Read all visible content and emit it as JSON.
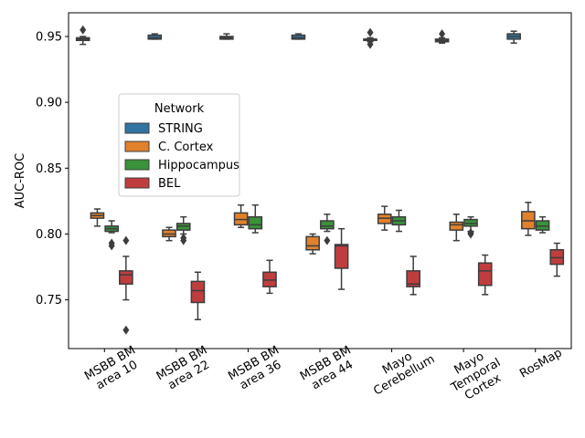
{
  "chart_data": {
    "type": "box",
    "ylabel": "AUC-ROC",
    "xlabel": "",
    "ylim": [
      0.713,
      0.968
    ],
    "yticks": [
      0.75,
      0.8,
      0.85,
      0.9,
      0.95
    ],
    "ytick_labels": [
      "0.75",
      "0.80",
      "0.85",
      "0.90",
      "0.95"
    ],
    "categories": [
      [
        "MSBB BM",
        "area 10"
      ],
      [
        "MSBB BM",
        "area 22"
      ],
      [
        "MSBB BM",
        "area 36"
      ],
      [
        "MSBB BM",
        "area 44"
      ],
      [
        "Mayo",
        "Cerebellum"
      ],
      [
        "Mayo",
        "Temporal",
        "Cortex"
      ],
      [
        "RosMap"
      ]
    ],
    "legend": {
      "title": "Network",
      "placement": "center-left"
    },
    "series": [
      {
        "name": "STRING",
        "color": "#3274a1",
        "boxes": [
          {
            "category": 0,
            "whislo": 0.944,
            "q1": 0.947,
            "med": 0.948,
            "q3": 0.949,
            "whishi": 0.95,
            "fliers": [
              0.955
            ]
          },
          {
            "category": 1,
            "whislo": 0.948,
            "q1": 0.948,
            "med": 0.949,
            "q3": 0.951,
            "whishi": 0.952,
            "fliers": []
          },
          {
            "category": 2,
            "whislo": 0.948,
            "q1": 0.948,
            "med": 0.949,
            "q3": 0.95,
            "whishi": 0.952,
            "fliers": []
          },
          {
            "category": 3,
            "whislo": 0.948,
            "q1": 0.948,
            "med": 0.949,
            "q3": 0.951,
            "whishi": 0.952,
            "fliers": []
          },
          {
            "category": 4,
            "whislo": 0.946,
            "q1": 0.947,
            "med": 0.948,
            "q3": 0.948,
            "whishi": 0.949,
            "fliers": [
              0.944,
              0.953
            ]
          },
          {
            "category": 5,
            "whislo": 0.945,
            "q1": 0.946,
            "med": 0.947,
            "q3": 0.948,
            "whishi": 0.949,
            "fliers": [
              0.952
            ]
          },
          {
            "category": 6,
            "whislo": 0.945,
            "q1": 0.948,
            "med": 0.95,
            "q3": 0.952,
            "whishi": 0.954,
            "fliers": []
          }
        ]
      },
      {
        "name": "C. Cortex",
        "color": "#e1812c",
        "boxes": [
          {
            "category": 0,
            "whislo": 0.806,
            "q1": 0.812,
            "med": 0.814,
            "q3": 0.816,
            "whishi": 0.819,
            "fliers": []
          },
          {
            "category": 1,
            "whislo": 0.795,
            "q1": 0.798,
            "med": 0.8,
            "q3": 0.803,
            "whishi": 0.805,
            "fliers": []
          },
          {
            "category": 2,
            "whislo": 0.805,
            "q1": 0.807,
            "med": 0.811,
            "q3": 0.816,
            "whishi": 0.822,
            "fliers": []
          },
          {
            "category": 3,
            "whislo": 0.785,
            "q1": 0.788,
            "med": 0.791,
            "q3": 0.798,
            "whishi": 0.8,
            "fliers": []
          },
          {
            "category": 4,
            "whislo": 0.803,
            "q1": 0.808,
            "med": 0.812,
            "q3": 0.815,
            "whishi": 0.821,
            "fliers": []
          },
          {
            "category": 5,
            "whislo": 0.795,
            "q1": 0.803,
            "med": 0.807,
            "q3": 0.809,
            "whishi": 0.815,
            "fliers": []
          },
          {
            "category": 6,
            "whislo": 0.799,
            "q1": 0.804,
            "med": 0.81,
            "q3": 0.817,
            "whishi": 0.824,
            "fliers": []
          }
        ]
      },
      {
        "name": "Hippocampus",
        "color": "#3a923a",
        "boxes": [
          {
            "category": 0,
            "whislo": 0.801,
            "q1": 0.802,
            "med": 0.804,
            "q3": 0.806,
            "whishi": 0.81,
            "fliers": [
              0.793,
              0.791
            ]
          },
          {
            "category": 1,
            "whislo": 0.8,
            "q1": 0.803,
            "med": 0.806,
            "q3": 0.808,
            "whishi": 0.813,
            "fliers": [
              0.797,
              0.795
            ]
          },
          {
            "category": 2,
            "whislo": 0.801,
            "q1": 0.804,
            "med": 0.807,
            "q3": 0.813,
            "whishi": 0.822,
            "fliers": []
          },
          {
            "category": 3,
            "whislo": 0.802,
            "q1": 0.804,
            "med": 0.806,
            "q3": 0.81,
            "whishi": 0.815,
            "fliers": [
              0.795
            ]
          },
          {
            "category": 4,
            "whislo": 0.802,
            "q1": 0.807,
            "med": 0.81,
            "q3": 0.813,
            "whishi": 0.818,
            "fliers": []
          },
          {
            "category": 5,
            "whislo": 0.802,
            "q1": 0.806,
            "med": 0.808,
            "q3": 0.811,
            "whishi": 0.813,
            "fliers": [
              0.8,
              0.801
            ]
          },
          {
            "category": 6,
            "whislo": 0.801,
            "q1": 0.803,
            "med": 0.806,
            "q3": 0.81,
            "whishi": 0.813,
            "fliers": []
          }
        ]
      },
      {
        "name": "BEL",
        "color": "#c03d3e",
        "boxes": [
          {
            "category": 0,
            "whislo": 0.75,
            "q1": 0.762,
            "med": 0.769,
            "q3": 0.772,
            "whishi": 0.783,
            "fliers": [
              0.795,
              0.727
            ]
          },
          {
            "category": 1,
            "whislo": 0.735,
            "q1": 0.748,
            "med": 0.757,
            "q3": 0.764,
            "whishi": 0.771,
            "fliers": []
          },
          {
            "category": 2,
            "whislo": 0.755,
            "q1": 0.76,
            "med": 0.765,
            "q3": 0.771,
            "whishi": 0.78,
            "fliers": []
          },
          {
            "category": 3,
            "whislo": 0.758,
            "q1": 0.774,
            "med": 0.791,
            "q3": 0.792,
            "whishi": 0.804,
            "fliers": []
          },
          {
            "category": 4,
            "whislo": 0.754,
            "q1": 0.76,
            "med": 0.762,
            "q3": 0.772,
            "whishi": 0.783,
            "fliers": []
          },
          {
            "category": 5,
            "whislo": 0.754,
            "q1": 0.761,
            "med": 0.772,
            "q3": 0.778,
            "whishi": 0.784,
            "fliers": []
          },
          {
            "category": 6,
            "whislo": 0.768,
            "q1": 0.777,
            "med": 0.782,
            "q3": 0.788,
            "whishi": 0.793,
            "fliers": []
          }
        ]
      }
    ]
  }
}
